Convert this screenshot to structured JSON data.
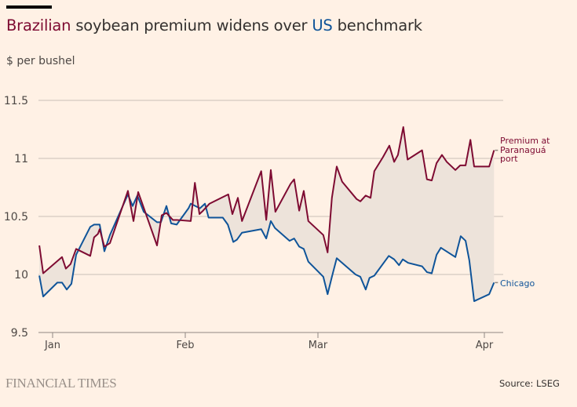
{
  "header": {
    "title_part1": "Brazilian",
    "title_part2": " soybean premium widens over ",
    "title_part3": "US",
    "title_part4": " benchmark",
    "unit": "$ per bushel"
  },
  "footer": {
    "brand": "FINANCIAL TIMES",
    "source": "Source: LSEG"
  },
  "colors": {
    "brazil": "#7e0b32",
    "us": "#0f5499",
    "fill": "#ede3da",
    "grid": "#c9bfb7",
    "background": "#fff1e5"
  },
  "chart_data": {
    "type": "line",
    "title": "Brazilian soybean premium widens over US benchmark",
    "ylabel": "$ per bushel",
    "xlabel": "",
    "x_unit": "days since Jan 1",
    "ylim": [
      9.5,
      11.5
    ],
    "yticks": [
      9.5,
      10,
      10.5,
      11,
      11.5
    ],
    "ytick_labels": [
      "9.5",
      "10",
      "10.5",
      "11",
      "11.5"
    ],
    "xticks": [
      0,
      31,
      60,
      91
    ],
    "xtick_labels": [
      "Jan",
      "Feb",
      "Mar",
      "Apr"
    ],
    "grid": true,
    "fill_between": true,
    "series": [
      {
        "name": "Premium at Paranaguá port",
        "label_lines": [
          "Premium at",
          "Paranaguá",
          "port"
        ],
        "x": [
          -3.1,
          -2.2,
          2.2,
          3.1,
          4.2,
          5.5,
          8.8,
          9.7,
          10.6,
          11.0,
          12.1,
          13.4,
          17.6,
          18.9,
          20.0,
          24.4,
          25.5,
          26.6,
          28.1,
          29.0,
          32.2,
          33.1,
          34.1,
          34.9,
          36.3,
          40.4,
          41.3,
          42.5,
          43.4,
          47.6,
          48.7,
          49.7,
          50.7,
          54.0,
          54.8,
          55.9,
          56.9,
          57.9,
          61.0,
          61.8,
          62.6,
          63.5,
          64.5,
          67.2,
          67.9,
          68.9,
          69.8,
          70.5,
          72.1,
          73.3,
          74.2,
          74.9,
          75.9,
          76.7,
          79.4,
          80.3,
          81.2,
          82.1,
          83.1,
          84.0,
          85.6,
          86.5,
          87.5,
          88.4,
          89.1,
          91.9,
          92.8
        ],
        "values": [
          10.25,
          10.01,
          10.15,
          10.05,
          10.09,
          10.22,
          10.16,
          10.32,
          10.35,
          10.39,
          10.24,
          10.27,
          10.72,
          10.46,
          10.71,
          10.25,
          10.51,
          10.53,
          10.47,
          10.47,
          10.46,
          10.79,
          10.52,
          10.55,
          10.61,
          10.69,
          10.52,
          10.66,
          10.46,
          10.89,
          10.47,
          10.9,
          10.54,
          10.78,
          10.82,
          10.55,
          10.72,
          10.46,
          10.34,
          10.19,
          10.66,
          10.93,
          10.8,
          10.65,
          10.63,
          10.68,
          10.66,
          10.89,
          11.01,
          11.11,
          10.97,
          11.03,
          11.27,
          10.99,
          11.07,
          10.82,
          10.81,
          10.96,
          11.03,
          10.97,
          10.9,
          10.94,
          10.94,
          11.16,
          10.93,
          10.93,
          11.07
        ]
      },
      {
        "name": "Chicago",
        "label_lines": [
          "Chicago"
        ],
        "x": [
          -3.1,
          -2.2,
          1.1,
          2.2,
          3.3,
          4.4,
          5.5,
          8.8,
          9.7,
          11.0,
          12.1,
          13.4,
          17.6,
          18.7,
          19.8,
          21.3,
          24.4,
          25.3,
          26.6,
          27.7,
          29.0,
          31.7,
          32.2,
          34.2,
          35.3,
          36.1,
          39.2,
          40.3,
          41.5,
          42.3,
          43.4,
          47.6,
          48.7,
          49.7,
          50.6,
          53.8,
          54.8,
          55.9,
          56.9,
          57.9,
          61.0,
          61.8,
          62.6,
          63.5,
          67.0,
          67.9,
          68.9,
          69.6,
          70.5,
          73.2,
          74.2,
          75.1,
          75.8,
          76.8,
          79.4,
          80.3,
          81.2,
          82.1,
          82.9,
          85.6,
          86.6,
          87.5,
          88.2,
          89.1,
          91.9,
          92.8
        ],
        "values": [
          9.99,
          9.81,
          9.93,
          9.93,
          9.87,
          9.92,
          10.17,
          10.41,
          10.43,
          10.43,
          10.2,
          10.34,
          10.69,
          10.59,
          10.68,
          10.54,
          10.45,
          10.45,
          10.59,
          10.44,
          10.43,
          10.57,
          10.61,
          10.57,
          10.61,
          10.49,
          10.49,
          10.43,
          10.28,
          10.3,
          10.36,
          10.39,
          10.31,
          10.46,
          10.4,
          10.29,
          10.31,
          10.24,
          10.22,
          10.11,
          9.98,
          9.83,
          9.98,
          10.14,
          10.0,
          9.98,
          9.87,
          9.97,
          9.99,
          10.16,
          10.13,
          10.08,
          10.13,
          10.1,
          10.07,
          10.02,
          10.01,
          10.17,
          10.23,
          10.15,
          10.33,
          10.29,
          10.12,
          9.77,
          9.83,
          9.93
        ]
      }
    ]
  }
}
